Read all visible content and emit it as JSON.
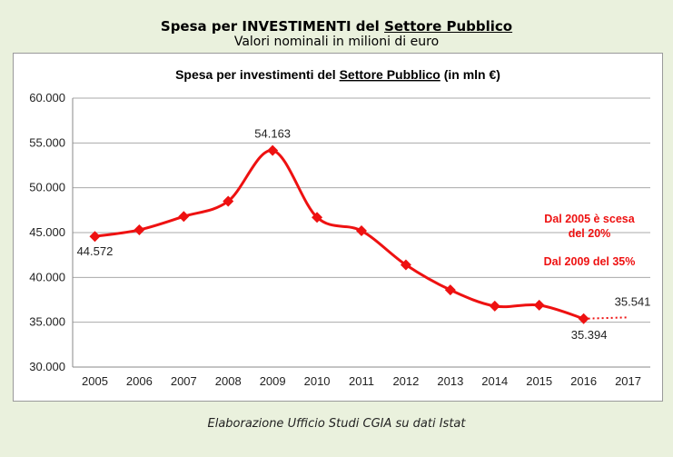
{
  "header": {
    "title_prefix": "Spesa per INVESTIMENTI del ",
    "title_underlined": "Settore Pubblico",
    "subtitle": "Valori nominali in milioni di euro"
  },
  "footer": {
    "source": "Elaborazione Ufficio Studi CGIA su dati Istat"
  },
  "chart_data": {
    "type": "line",
    "title_prefix": "Spesa per investimenti del ",
    "title_underlined": "Settore Pubblico",
    "title_suffix": " (in mln €)",
    "categories": [
      "2005",
      "2006",
      "2007",
      "2008",
      "2009",
      "2010",
      "2011",
      "2012",
      "2013",
      "2014",
      "2015",
      "2016",
      "2017"
    ],
    "series": [
      {
        "values": [
          44572,
          45300,
          46800,
          48500,
          54163,
          46700,
          45200,
          41400,
          38600,
          36800,
          36900,
          35394,
          null
        ],
        "color": "#ee1111"
      },
      {
        "style": "dotted",
        "values": [
          null,
          null,
          null,
          null,
          null,
          null,
          null,
          null,
          null,
          null,
          null,
          35394,
          35541
        ],
        "color": "#ee1111"
      }
    ],
    "y_ticks": [
      "30.000",
      "35.000",
      "40.000",
      "45.000",
      "50.000",
      "55.000",
      "60.000"
    ],
    "ylim": [
      30000,
      60000
    ],
    "grid": true,
    "data_labels": [
      {
        "category": "2005",
        "text": "44.572"
      },
      {
        "category": "2009",
        "text": "54.163"
      },
      {
        "category": "2016",
        "text": "35.394"
      },
      {
        "category": "2017",
        "text": "35.541"
      }
    ],
    "annotations": [
      "Dal 2005 è scesa",
      "del 20%",
      "Dal 2009 del 35%"
    ],
    "annotation_color": "#ee1111"
  }
}
